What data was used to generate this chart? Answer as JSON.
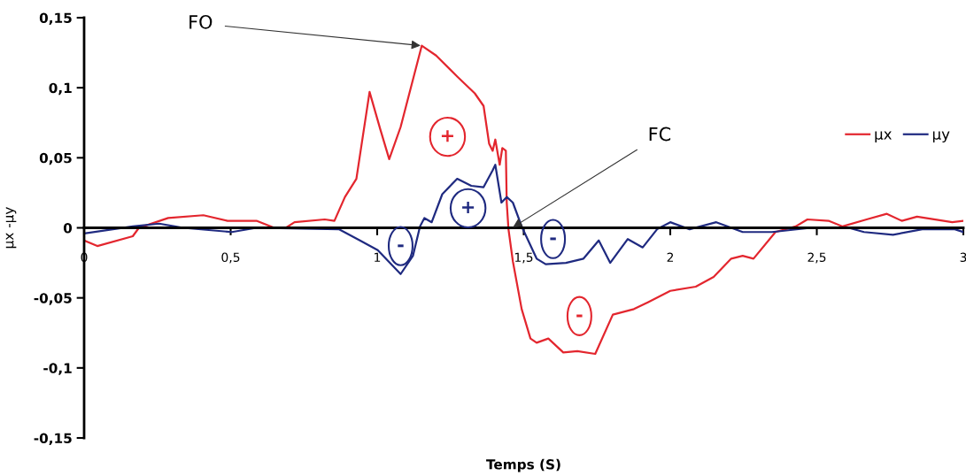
{
  "chart_data": {
    "type": "line",
    "xlabel": "Temps (S)",
    "ylabel": "µx -µy",
    "xlim": [
      0,
      3
    ],
    "ylim": [
      -0.15,
      0.15
    ],
    "xticks": [
      0,
      {
        "value": 0.5,
        "label": "0,5"
      },
      1,
      {
        "value": 1.5,
        "label": "1,5"
      },
      2,
      {
        "value": 2.5,
        "label": "2,5"
      },
      3
    ],
    "yticks": [
      {
        "value": -0.15,
        "label": "-0,15"
      },
      {
        "value": -0.1,
        "label": "-0,1"
      },
      {
        "value": -0.05,
        "label": "-0,05"
      },
      0,
      {
        "value": 0.05,
        "label": "0,05"
      },
      {
        "value": 0.1,
        "label": "0,1"
      },
      {
        "value": 0.15,
        "label": "0,15"
      }
    ],
    "grid": false,
    "legend": "right",
    "marker": "none",
    "line_style": "solid",
    "series": [
      {
        "name": "µx",
        "color": "#e3262e",
        "x": [
          0,
          0.045,
          0.166,
          0.187,
          0.287,
          0.407,
          0.489,
          0.588,
          0.649,
          0.688,
          0.718,
          0.821,
          0.854,
          0.89,
          0.929,
          0.974,
          1.011,
          1.041,
          1.08,
          1.152,
          1.201,
          1.273,
          1.333,
          1.363,
          1.382,
          1.394,
          1.403,
          1.418,
          1.427,
          1.439,
          1.442,
          1.448,
          1.463,
          1.493,
          1.523,
          1.544,
          1.584,
          1.635,
          1.683,
          1.744,
          1.804,
          1.876,
          1.925,
          2.0,
          2.087,
          2.148,
          2.208,
          2.247,
          2.284,
          2.359,
          2.428,
          2.468,
          2.54,
          2.588,
          2.67,
          2.739,
          2.79,
          2.842,
          2.962,
          3.0
        ],
        "values": [
          -0.009,
          -0.013,
          -0.006,
          0.0,
          0.007,
          0.009,
          0.005,
          0.005,
          0.0,
          0.0,
          0.004,
          0.006,
          0.005,
          0.022,
          0.035,
          0.097,
          0.07,
          0.049,
          0.072,
          0.13,
          0.123,
          0.108,
          0.096,
          0.087,
          0.06,
          0.055,
          0.063,
          0.045,
          0.057,
          0.055,
          0.018,
          -0.001,
          -0.024,
          -0.058,
          -0.079,
          -0.082,
          -0.079,
          -0.089,
          -0.088,
          -0.09,
          -0.062,
          -0.058,
          -0.053,
          -0.045,
          -0.042,
          -0.035,
          -0.022,
          -0.02,
          -0.022,
          -0.003,
          0.001,
          0.006,
          0.005,
          0.001,
          0.006,
          0.01,
          0.005,
          0.008,
          0.004,
          0.005
        ]
      },
      {
        "name": "µy",
        "color": "#1f2a80",
        "x": [
          0,
          0.166,
          0.256,
          0.338,
          0.504,
          0.588,
          0.869,
          0.941,
          1.002,
          1.08,
          1.122,
          1.146,
          1.161,
          1.186,
          1.222,
          1.273,
          1.321,
          1.363,
          1.394,
          1.403,
          1.424,
          1.442,
          1.463,
          1.493,
          1.544,
          1.575,
          1.644,
          1.704,
          1.756,
          1.795,
          1.855,
          1.906,
          1.955,
          2.0,
          2.066,
          2.157,
          2.247,
          2.347,
          2.48,
          2.609,
          2.661,
          2.76,
          2.86,
          2.971,
          3.0
        ],
        "values": [
          -0.004,
          0.001,
          0.003,
          0.0,
          -0.003,
          0.0,
          -0.001,
          -0.009,
          -0.016,
          -0.033,
          -0.02,
          0.001,
          0.007,
          0.004,
          0.024,
          0.035,
          0.03,
          0.029,
          0.041,
          0.045,
          0.018,
          0.022,
          0.018,
          0.001,
          -0.022,
          -0.026,
          -0.025,
          -0.022,
          -0.009,
          -0.025,
          -0.008,
          -0.014,
          -0.001,
          0.004,
          -0.001,
          0.004,
          -0.003,
          -0.003,
          0.0,
          0.0,
          -0.003,
          -0.005,
          -0.001,
          -0.001,
          -0.003
        ]
      }
    ],
    "annotations": [
      {
        "text": "FO",
        "x": 1.152,
        "y": 0.13
      },
      {
        "text": "FC",
        "x": 1.46,
        "y": 0.0
      },
      {
        "text": "+",
        "x": 1.24,
        "y": 0.065
      },
      {
        "text": "+",
        "x": 1.31,
        "y": 0.014
      },
      {
        "text": "-",
        "x": 1.08,
        "y": -0.013
      },
      {
        "text": "-",
        "x": 1.6,
        "y": -0.008
      },
      {
        "text": "-",
        "x": 1.69,
        "y": -0.063
      }
    ]
  }
}
